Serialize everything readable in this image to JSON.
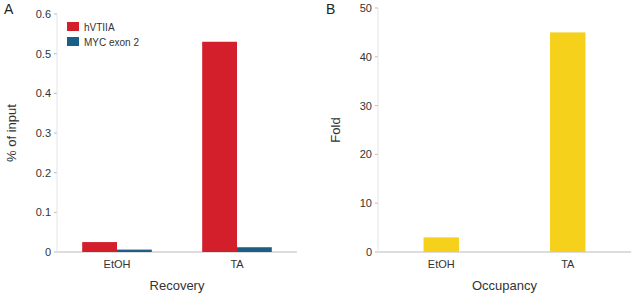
{
  "chart_data": [
    {
      "type": "bar",
      "title": "A",
      "x_label": "Recovery",
      "y_label": "% of input",
      "categories": [
        "EtOH",
        "TA"
      ],
      "series": [
        {
          "name": "hVTIIA",
          "color": "#d21f2b",
          "values": [
            0.025,
            0.53
          ]
        },
        {
          "name": "MYC exon 2",
          "color": "#1b5e86",
          "values": [
            0.006,
            0.012
          ]
        }
      ],
      "ylim": [
        0,
        0.6
      ],
      "yticks": [
        0,
        0.1,
        0.2,
        0.3,
        0.4,
        0.5,
        0.6
      ],
      "grid": false,
      "legend": "top-left"
    },
    {
      "type": "bar",
      "title": "B",
      "x_label": "Occupancy",
      "y_label": "Fold",
      "categories": [
        "EtOH",
        "TA"
      ],
      "values": [
        3,
        45
      ],
      "color": "#f6d11b",
      "ylim": [
        0,
        50
      ],
      "yticks": [
        0,
        10,
        20,
        30,
        40,
        50
      ],
      "grid": false
    }
  ]
}
